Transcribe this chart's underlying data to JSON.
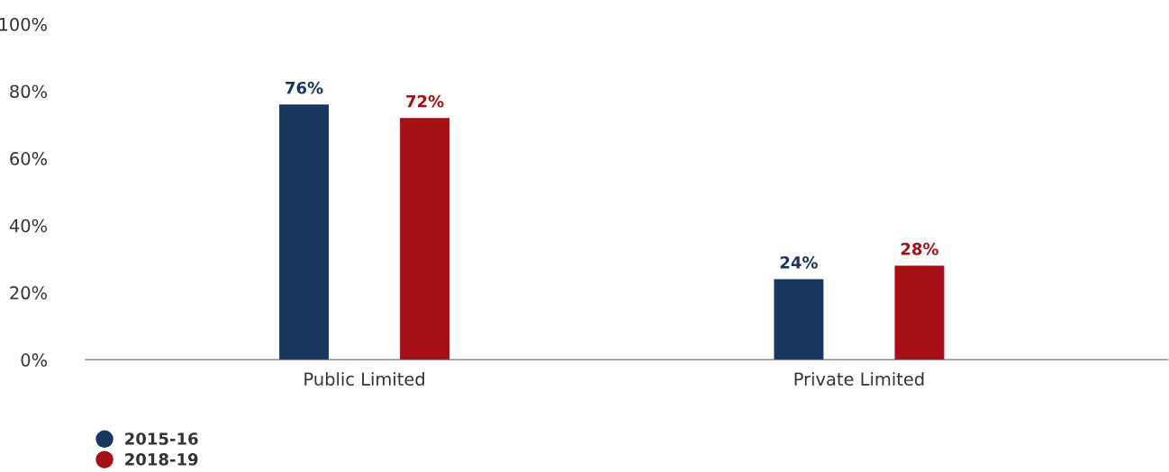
{
  "chart_data": {
    "type": "bar",
    "categories": [
      "Public Limited",
      "Private Limited"
    ],
    "series": [
      {
        "name": "2015-16",
        "color": "#17375e",
        "values": [
          76,
          24
        ],
        "value_labels": [
          "76%",
          "24%"
        ]
      },
      {
        "name": "2018-19",
        "color": "#a50f15",
        "values": [
          72,
          28
        ],
        "value_labels": [
          "72%",
          "28%"
        ]
      }
    ],
    "ylim": [
      0,
      100
    ],
    "yticks": [
      {
        "value": 0,
        "label": "0%"
      },
      {
        "value": 20,
        "label": "20%"
      },
      {
        "value": 40,
        "label": "40%"
      },
      {
        "value": 60,
        "label": "60%"
      },
      {
        "value": 80,
        "label": "80%"
      },
      {
        "value": 100,
        "label": "100%"
      }
    ],
    "grid": false,
    "legend": "bottom left"
  }
}
